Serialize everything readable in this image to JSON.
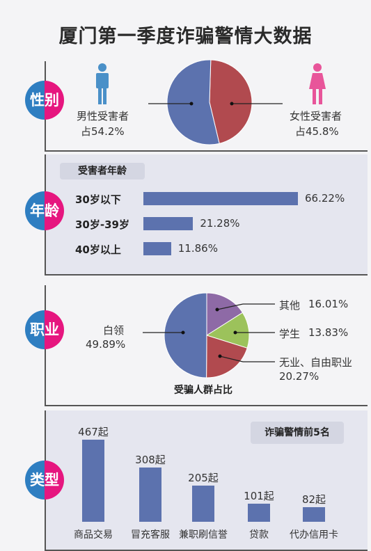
{
  "title": "厦门第一季度诈骗警情大数据",
  "colors": {
    "blue": "#5c72ae",
    "red": "#b14a4f",
    "purple": "#8e6aa6",
    "green": "#9cc25b",
    "badge_left": "#2e7ec1",
    "badge_right": "#e6167f",
    "male_icon": "#4a90c8",
    "female_icon": "#e8559a"
  },
  "sections": {
    "gender": {
      "badge": "性别",
      "male_label": "男性受害者",
      "male_value": "占54.2%",
      "female_label": "女性受害者",
      "female_value": "占45.8%"
    },
    "age": {
      "badge": "年龄",
      "header": "受害者年龄"
    },
    "occupation": {
      "badge": "职业",
      "caption": "受骗人群占比"
    },
    "type": {
      "badge": "类型",
      "header": "诈骗警情前5名"
    }
  },
  "chart_data": [
    {
      "type": "pie",
      "labels": [
        "男性受害者",
        "女性受害者"
      ],
      "values": [
        54.2,
        45.8
      ],
      "colors": [
        "#5c72ae",
        "#b14a4f"
      ]
    },
    {
      "type": "bar",
      "orientation": "horizontal",
      "title": "受害者年龄",
      "categories": [
        "30岁以下",
        "30岁-39岁",
        "40岁以上"
      ],
      "values": [
        66.22,
        21.28,
        11.86
      ],
      "value_labels": [
        "66.22%",
        "21.28%",
        "11.86%"
      ]
    },
    {
      "type": "pie",
      "title": "受骗人群占比",
      "labels": [
        "白领",
        "其他",
        "学生",
        "无业、自由职业"
      ],
      "values": [
        49.89,
        16.01,
        13.83,
        20.27
      ],
      "label_lines": [
        {
          "name": "白领",
          "value": "49.89%"
        },
        {
          "name": "其他",
          "value": "16.01%"
        },
        {
          "name": "学生",
          "value": "13.83%"
        },
        {
          "name": "无业、自由职业",
          "value": "20.27%"
        }
      ],
      "colors": [
        "#5c72ae",
        "#8e6aa6",
        "#9cc25b",
        "#b14a4f"
      ]
    },
    {
      "type": "bar",
      "title": "诈骗警情前5名",
      "categories": [
        "商品交易",
        "冒充客服",
        "兼职刷信誉",
        "贷款",
        "代办信用卡"
      ],
      "values": [
        467,
        308,
        205,
        101,
        82
      ],
      "value_labels": [
        "467起",
        "308起",
        "205起",
        "101起",
        "82起"
      ]
    }
  ]
}
